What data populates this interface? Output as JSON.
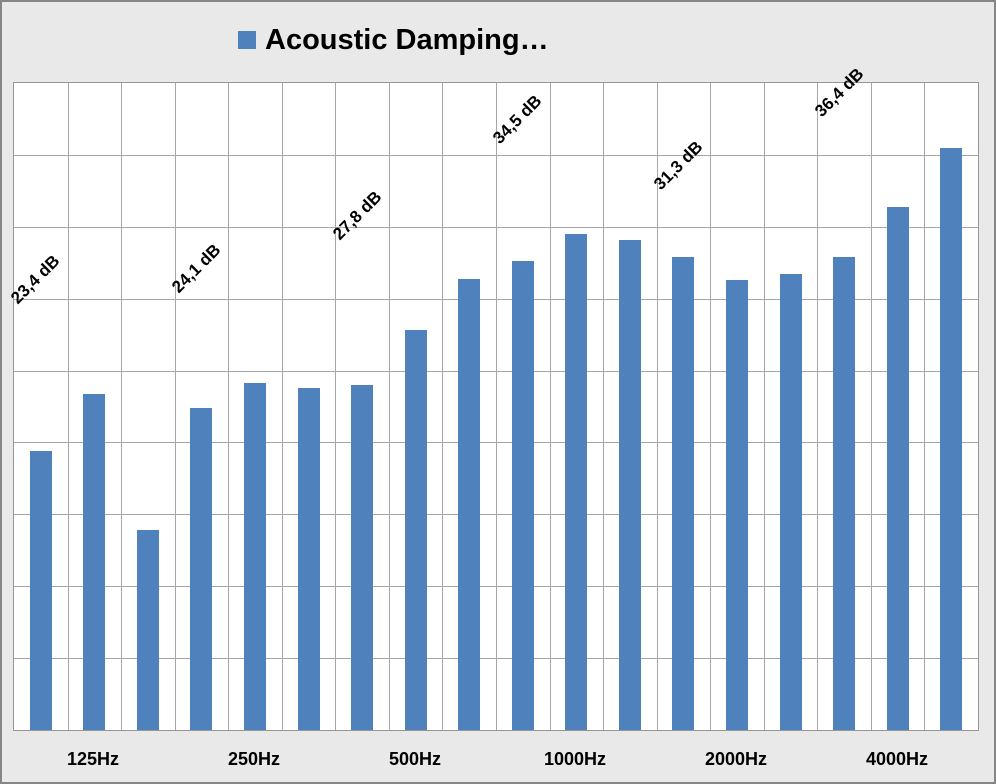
{
  "legend": {
    "label": "Acoustic Damping…"
  },
  "colors": {
    "bar": "#4F81BD",
    "legend_marker": "#4F81BD",
    "chart_background": "#E9E9E9",
    "plot_background": "#FFFFFF",
    "gridline": "#A6A6A6",
    "plot_border": "#969696",
    "outer_border": "#868686",
    "text": "#000000"
  },
  "chart_data": {
    "type": "bar",
    "title": "Acoustic Damping…",
    "legend_position": "top",
    "unit": "dB",
    "ylim": [
      0,
      45
    ],
    "gridline_step_db": 5,
    "grid": true,
    "bar_color": "#4F81BD",
    "values": [
      19.4,
      23.4,
      13.9,
      22.4,
      24.1,
      23.8,
      24.0,
      27.8,
      31.4,
      32.6,
      34.5,
      34.1,
      32.9,
      31.3,
      31.7,
      32.9,
      36.4,
      40.5
    ],
    "x_tick_labels": [
      "125Hz",
      "250Hz",
      "500Hz",
      "1000Hz",
      "2000Hz",
      "4000Hz"
    ],
    "x_tick_bar_indices": [
      1,
      4,
      7,
      10,
      13,
      16
    ],
    "data_labels": [
      {
        "index": 1,
        "text": "23,4 dB"
      },
      {
        "index": 4,
        "text": "24,1 dB"
      },
      {
        "index": 7,
        "text": "27,8 dB"
      },
      {
        "index": 10,
        "text": "34,5 dB"
      },
      {
        "index": 13,
        "text": "31,3 dB"
      },
      {
        "index": 16,
        "text": "36,4 dB"
      }
    ]
  }
}
